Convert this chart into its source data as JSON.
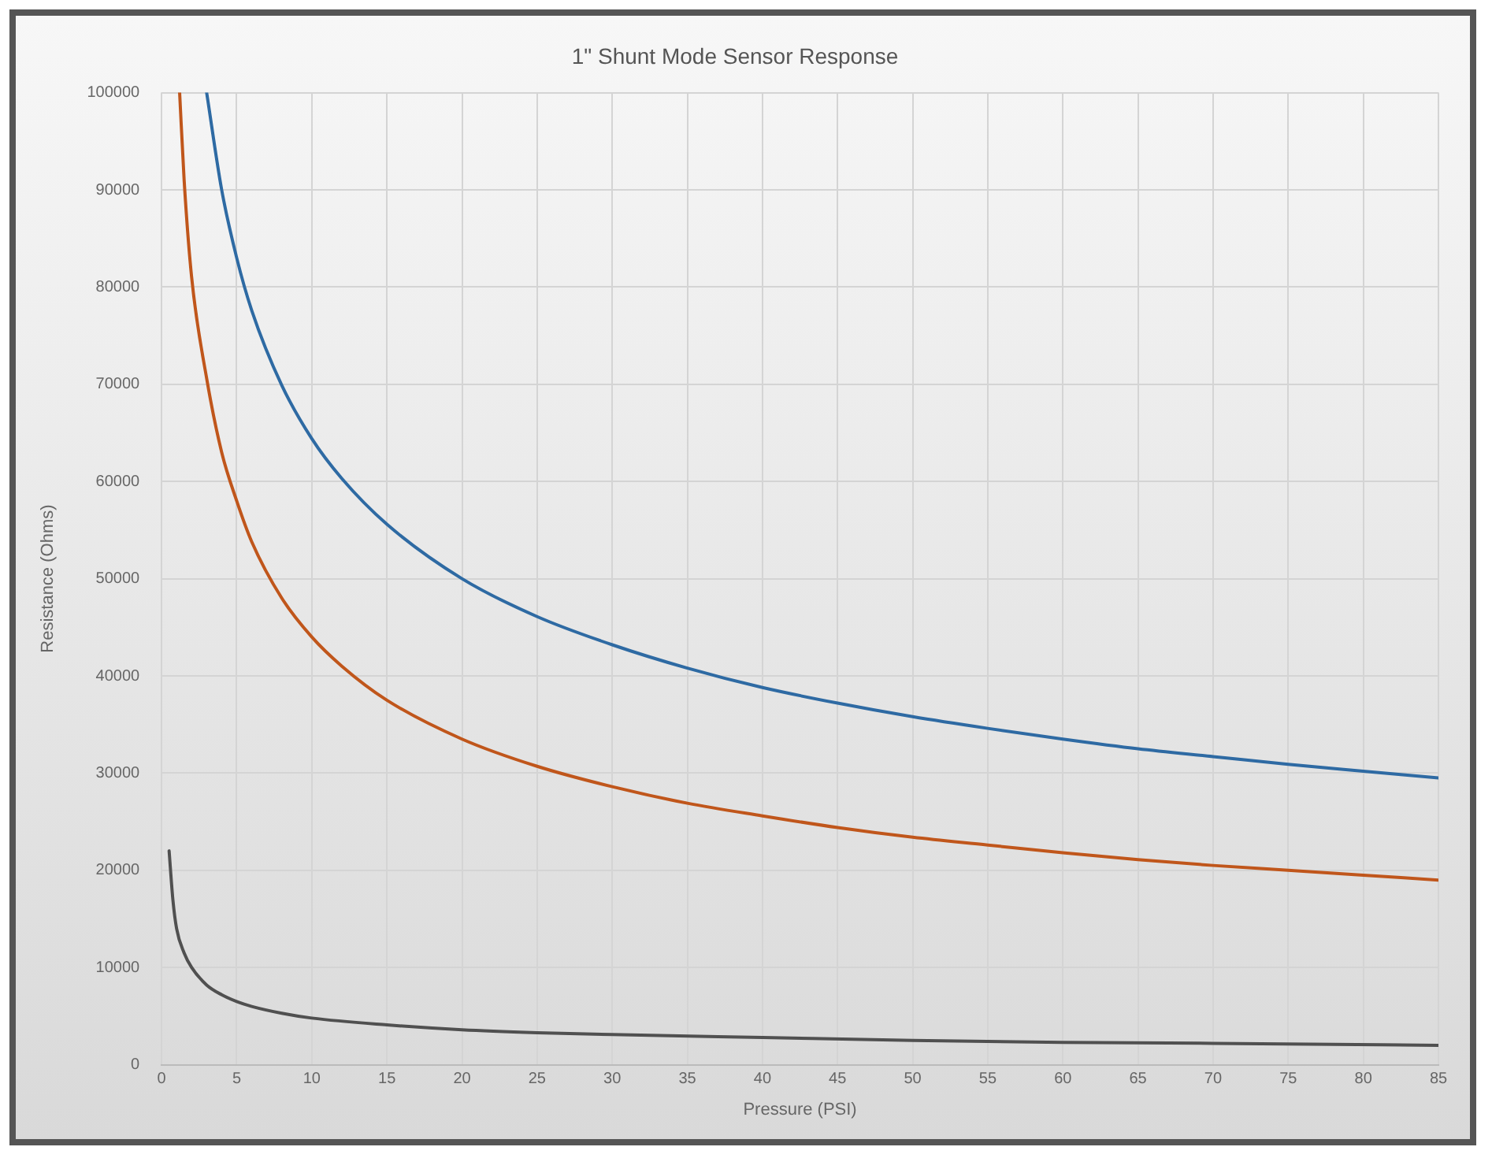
{
  "chart_data": {
    "type": "line",
    "title": "1\" Shunt Mode Sensor Response",
    "xlabel": "Pressure (PSI)",
    "ylabel": "Resistance (Ohms)",
    "xlim": [
      0,
      85
    ],
    "xticks": [
      0,
      5,
      10,
      15,
      20,
      25,
      30,
      35,
      40,
      45,
      50,
      55,
      60,
      65,
      70,
      75,
      80,
      85
    ],
    "ylim": [
      0,
      100000
    ],
    "yticks": [
      0,
      10000,
      20000,
      30000,
      40000,
      50000,
      60000,
      70000,
      80000,
      90000,
      100000
    ],
    "grid": true,
    "legend": false,
    "marker": "none",
    "line_style": "solid",
    "series": [
      {
        "color": "#2e6aa3",
        "x": [
          3,
          4,
          5,
          6,
          8,
          10,
          12,
          15,
          20,
          25,
          30,
          35,
          40,
          45,
          50,
          55,
          60,
          65,
          70,
          75,
          80,
          85
        ],
        "values": [
          100000,
          90000,
          83000,
          77600,
          69900,
          64400,
          60300,
          55600,
          50000,
          46100,
          43200,
          40800,
          38800,
          37200,
          35800,
          34600,
          33500,
          32500,
          31700,
          30900,
          30200,
          29500
        ]
      },
      {
        "color": "#c0561b",
        "x": [
          1.2,
          1.5,
          2,
          3,
          4,
          5,
          6,
          8,
          10,
          12,
          15,
          20,
          25,
          30,
          35,
          40,
          45,
          50,
          55,
          60,
          65,
          70,
          75,
          80,
          85
        ],
        "values": [
          100000,
          91000,
          81000,
          70600,
          63000,
          58000,
          53800,
          48000,
          44000,
          41000,
          37500,
          33500,
          30700,
          28600,
          26900,
          25600,
          24400,
          23400,
          22600,
          21800,
          21100,
          20500,
          20000,
          19500,
          19000
        ]
      },
      {
        "color": "#505050",
        "x": [
          0.5,
          0.75,
          1,
          1.5,
          2,
          3,
          4,
          5,
          6,
          8,
          10,
          15,
          20,
          25,
          30,
          40,
          50,
          60,
          70,
          85
        ],
        "values": [
          22000,
          17000,
          14000,
          11500,
          10000,
          8200,
          7200,
          6500,
          6000,
          5300,
          4800,
          4100,
          3600,
          3300,
          3100,
          2800,
          2500,
          2300,
          2200,
          2000
        ]
      }
    ]
  }
}
